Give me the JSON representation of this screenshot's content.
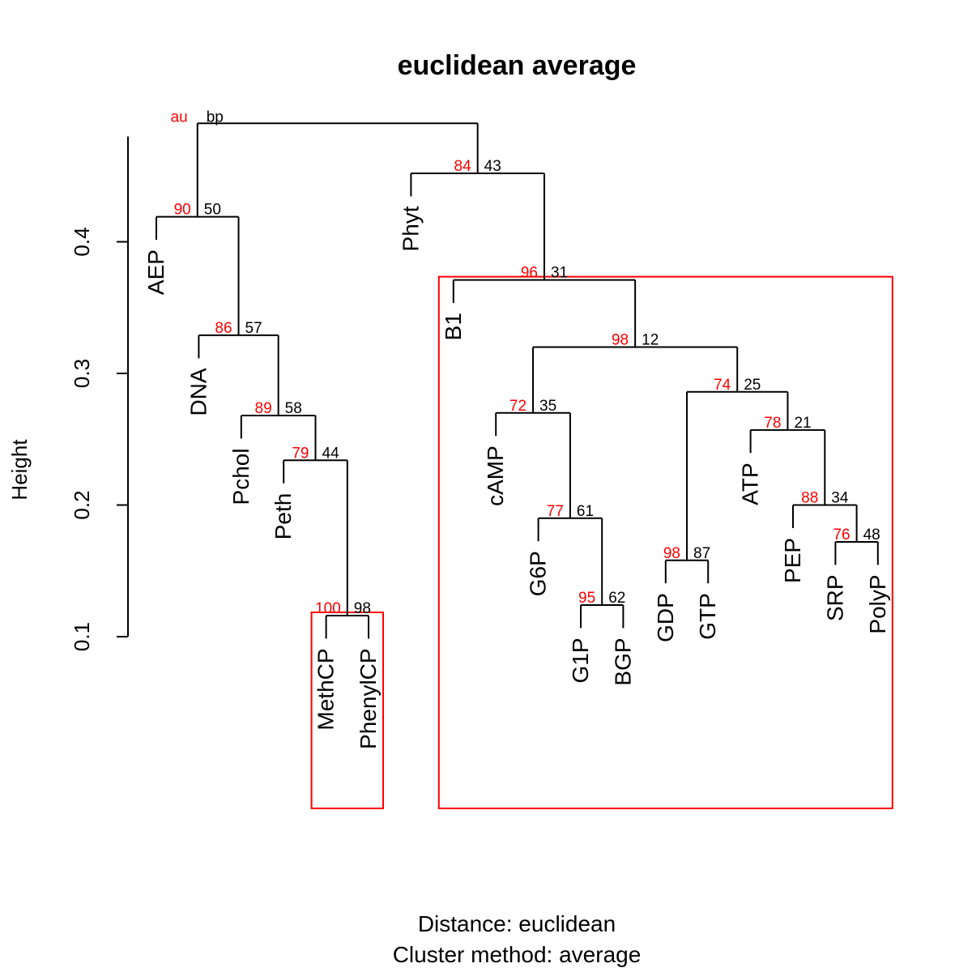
{
  "chart_data": {
    "type": "dendrogram",
    "title": "euclidean average",
    "ylabel": "Height",
    "subtitle_lines": [
      "Distance:  euclidean",
      "Cluster method: average"
    ],
    "legend": {
      "au": "au",
      "bp": "bp"
    },
    "y_ticks": [
      0.1,
      0.2,
      0.3,
      0.4
    ],
    "y_tick_labels": [
      "0.1",
      "0.2",
      "0.3",
      "0.4"
    ],
    "y_axis_range": [
      0.1,
      0.48
    ],
    "colors": {
      "line": "#000000",
      "au": "#ff0000",
      "bp": "#000000",
      "highlight": "#ff0000"
    },
    "leaves": [
      "AEP",
      "DNA",
      "Pchol",
      "Peth",
      "MethCP",
      "PhenylCP",
      "Phyt",
      "B1",
      "cAMP",
      "G6P",
      "G1P",
      "BGP",
      "GDP",
      "GTP",
      "ATP",
      "PEP",
      "SRP",
      "PolyP"
    ],
    "merges": [
      {
        "id": 1,
        "left": "MethCP",
        "right": "PhenylCP",
        "height": 0.116,
        "au": 100,
        "bp": 98
      },
      {
        "id": 2,
        "left": "Peth",
        "right": 1,
        "height": 0.234,
        "au": 79,
        "bp": 44
      },
      {
        "id": 3,
        "left": "Pchol",
        "right": 2,
        "height": 0.268,
        "au": 89,
        "bp": 58
      },
      {
        "id": 4,
        "left": "DNA",
        "right": 3,
        "height": 0.329,
        "au": 86,
        "bp": 57
      },
      {
        "id": 5,
        "left": "AEP",
        "right": 4,
        "height": 0.419,
        "au": 90,
        "bp": 50
      },
      {
        "id": 6,
        "left": "G1P",
        "right": "BGP",
        "height": 0.124,
        "au": 95,
        "bp": 62
      },
      {
        "id": 7,
        "left": "G6P",
        "right": 6,
        "height": 0.19,
        "au": 77,
        "bp": 61
      },
      {
        "id": 8,
        "left": "cAMP",
        "right": 7,
        "height": 0.27,
        "au": 72,
        "bp": 35
      },
      {
        "id": 9,
        "left": "GDP",
        "right": "GTP",
        "height": 0.158,
        "au": 98,
        "bp": 87
      },
      {
        "id": 10,
        "left": "SRP",
        "right": "PolyP",
        "height": 0.172,
        "au": 76,
        "bp": 48
      },
      {
        "id": 11,
        "left": "PEP",
        "right": 10,
        "height": 0.2,
        "au": 88,
        "bp": 34
      },
      {
        "id": 12,
        "left": "ATP",
        "right": 11,
        "height": 0.257,
        "au": 78,
        "bp": 21
      },
      {
        "id": 13,
        "left": 9,
        "right": 12,
        "height": 0.286,
        "au": 74,
        "bp": 25
      },
      {
        "id": 14,
        "left": 8,
        "right": 13,
        "height": 0.32,
        "au": 98,
        "bp": 12
      },
      {
        "id": 15,
        "left": "B1",
        "right": 14,
        "height": 0.371,
        "au": 96,
        "bp": 31
      },
      {
        "id": 16,
        "left": "Phyt",
        "right": 15,
        "height": 0.452,
        "au": 84,
        "bp": 43
      },
      {
        "id": 17,
        "left": 5,
        "right": 16,
        "height": 0.49,
        "au": null,
        "bp": null
      }
    ],
    "highlighted_clusters": [
      {
        "leaves": [
          "MethCP",
          "PhenylCP"
        ]
      },
      {
        "leaves": [
          "B1",
          "cAMP",
          "G6P",
          "G1P",
          "BGP",
          "GDP",
          "GTP",
          "ATP",
          "PEP",
          "SRP",
          "PolyP"
        ]
      }
    ]
  }
}
